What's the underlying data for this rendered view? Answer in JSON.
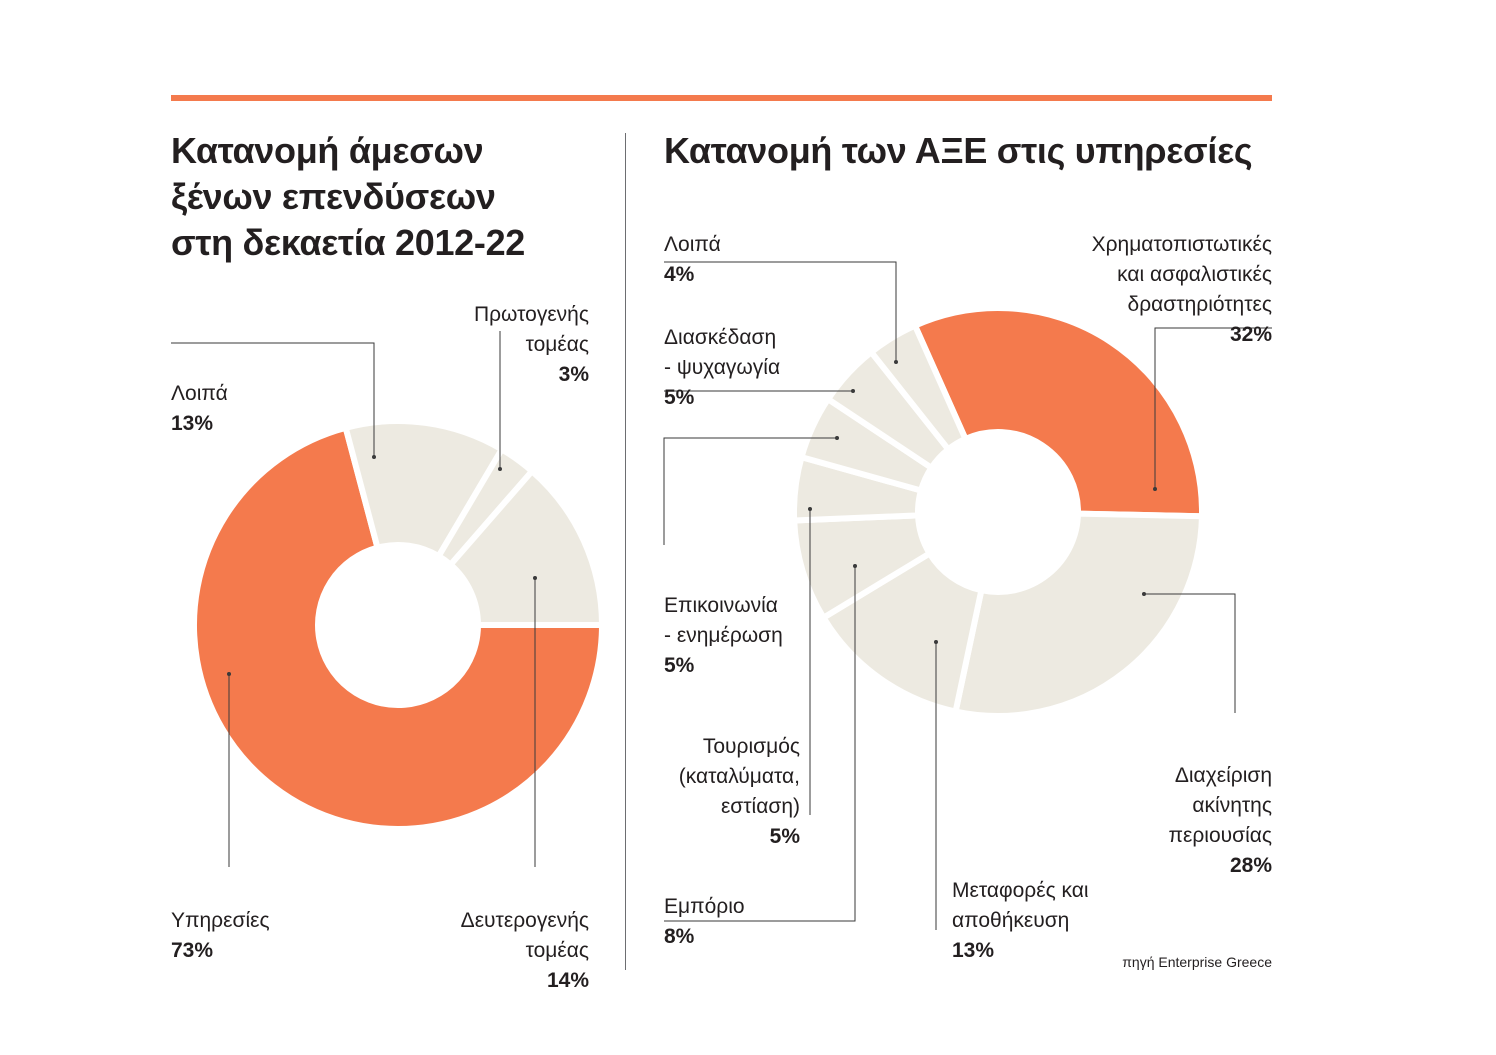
{
  "source": "πηγή Enterprise Greece",
  "colors": {
    "accent": "#f47a4d",
    "neutral": "#edeae1",
    "leader": "#3a3a3a",
    "rule": "#f47a4d"
  },
  "chart_data": [
    {
      "type": "pie",
      "subtype": "donut",
      "title": "Κατανομή άμεσων\nξένων επενδύσεων\nστη δεκαετία 2012-22",
      "slices": [
        {
          "label": "Υπηρεσίες",
          "value": 73,
          "display": "73%",
          "highlight": true
        },
        {
          "label": "Λοιπά",
          "value": 13,
          "display": "13%",
          "highlight": false
        },
        {
          "label": "Πρωτογενής\nτομέας",
          "value": 3,
          "display": "3%",
          "highlight": false
        },
        {
          "label": "Δευτερογενής\nτομέας",
          "value": 14,
          "display": "14%",
          "highlight": false
        }
      ]
    },
    {
      "type": "pie",
      "subtype": "donut",
      "title": "Κατανομή των ΑΞΕ στις υπηρεσίες",
      "slices": [
        {
          "label": "Χρηματοπιστωτικές\nκαι ασφαλιστικές\nδραστηριότητες",
          "value": 32,
          "display": "32%",
          "highlight": true
        },
        {
          "label": "Διαχείριση\nακίνητης\nπεριουσίας",
          "value": 28,
          "display": "28%",
          "highlight": false
        },
        {
          "label": "Μεταφορές και\nαποθήκευση",
          "value": 13,
          "display": "13%",
          "highlight": false
        },
        {
          "label": "Εμπόριο",
          "value": 8,
          "display": "8%",
          "highlight": false
        },
        {
          "label": "Τουρισμός\n(καταλύματα,\nεστίαση)",
          "value": 5,
          "display": "5%",
          "highlight": false
        },
        {
          "label": "Επικοινωνία\n- ενημέρωση",
          "value": 5,
          "display": "5%",
          "highlight": false
        },
        {
          "label": "Διασκέδαση\n- ψυχαγωγία",
          "value": 5,
          "display": "5%",
          "highlight": false
        },
        {
          "label": "Λοιπά",
          "value": 4,
          "display": "4%",
          "highlight": false
        }
      ]
    }
  ]
}
